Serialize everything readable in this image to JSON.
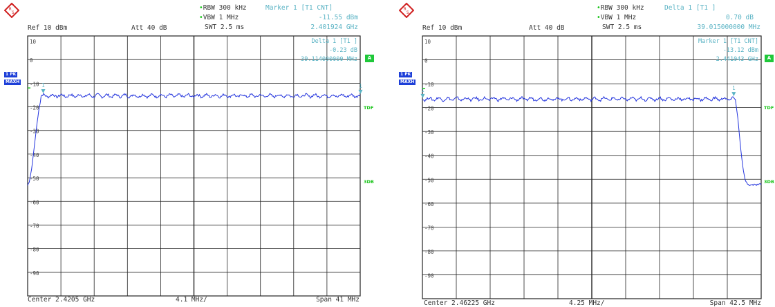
{
  "colors": {
    "grid": "#222222",
    "trace": "#2233dd",
    "annot": "#5ab3c4",
    "green": "#19c419",
    "badge": "#1d3fd8"
  },
  "chart_data": [
    {
      "type": "line",
      "ref_level": "10 dBm",
      "attenuation": "40 dB",
      "rbw": "RBW 300 kHz",
      "vbw": "VBW 1 MHz",
      "swt": "SWT 2.5 ms",
      "marker_info": {
        "title": "Marker 1 [T1 CNT]",
        "level": "-11.55 dBm",
        "freq": "2.401924 GHz"
      },
      "delta_info": {
        "title": "Delta 1 [T1 ]",
        "level": "-0.23 dB",
        "freq": "39.114000000 MHz"
      },
      "y_ticks": [
        "10",
        "0",
        "-10",
        "-20",
        "-30",
        "-40",
        "-50",
        "-60",
        "-70",
        "-80",
        "-90"
      ],
      "ylim": [
        -90,
        10
      ],
      "xlim_mhz": [
        2400.0,
        2441.0
      ],
      "center_label": "Center 2.4205 GHz",
      "div_label": "4.1 MHz/",
      "span_label": "Span 41 MHz",
      "side_labels": {
        "trace": "1 PK",
        "mode": "MAXH",
        "a_box": "A",
        "tdf": "TDF",
        "mark3db": "3DB"
      },
      "marker_labels": [
        "1",
        "1"
      ],
      "markers": [
        {
          "x": 2401.92,
          "y": -11.55
        },
        {
          "x": 2441.04,
          "y": -11.78
        }
      ],
      "ripple": [
        -12.5,
        -13.5
      ],
      "series": [
        {
          "x": [
            2400.0,
            2400.2,
            2400.5,
            2400.8,
            2401.1,
            2401.4,
            2401.7,
            2402.0,
            2402.4,
            2441.0
          ],
          "values": [
            -47.5,
            -46,
            -41,
            -33,
            -25,
            -18,
            -13.5,
            -12.5,
            -13,
            -13
          ]
        }
      ]
    },
    {
      "type": "line",
      "ref_level": "10 dBm",
      "attenuation": "40 dB",
      "rbw": "RBW 300 kHz",
      "vbw": "VBW 1 MHz",
      "swt": "SWT 2.5 ms",
      "marker_info": {
        "title": "Delta 1 [T1 ]",
        "level": "0.70 dB",
        "freq": "39.015000000 MHz"
      },
      "delta_info": {
        "title": "Marker 1 [T1 CNT]",
        "level": "-13.12 dBm",
        "freq": "2.441043 GHz"
      },
      "y_ticks": [
        "10",
        "0",
        "-10",
        "-20",
        "-30",
        "-40",
        "-50",
        "-60",
        "-70",
        "-80",
        "-90"
      ],
      "ylim": [
        -90,
        10
      ],
      "xlim_mhz": [
        2441.0,
        2483.5
      ],
      "center_label": "Center 2.46225 GHz",
      "div_label": "4.25 MHz/",
      "span_label": "Span 42.5 MHz",
      "side_labels": {
        "trace": "1 PK",
        "mode": "MAXH",
        "a_box": "A",
        "tdf": "TDF",
        "mark3db": "3DB"
      },
      "marker_labels": [
        "1",
        "1"
      ],
      "markers": [
        {
          "x": 2441.04,
          "y": -13.12
        },
        {
          "x": 2480.06,
          "y": -12.4
        }
      ],
      "ripple": [
        -13.5,
        -14.5
      ],
      "series": [
        {
          "x": [
            2441.0,
            2480.0,
            2480.3,
            2480.6,
            2480.9,
            2481.2,
            2481.5,
            2481.8,
            2482.2,
            2483.5
          ],
          "values": [
            -14,
            -14,
            -15,
            -22,
            -32,
            -40,
            -45,
            -46.5,
            -46.8,
            -46.5
          ]
        }
      ]
    }
  ]
}
